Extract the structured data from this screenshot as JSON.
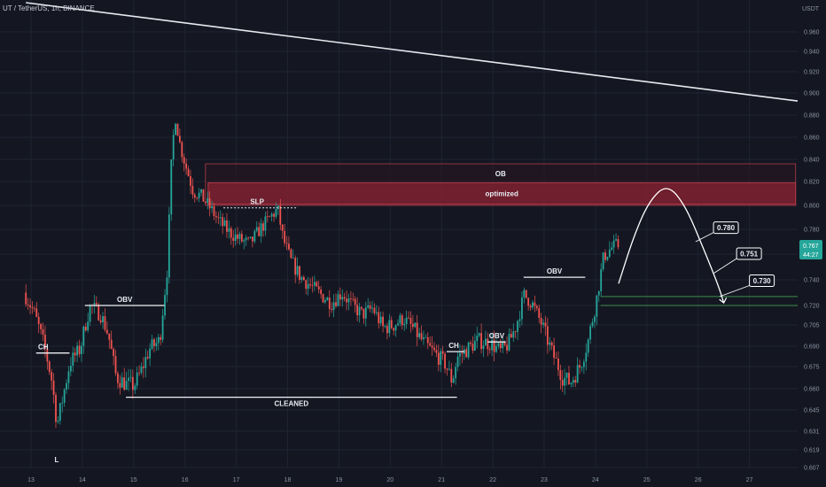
{
  "header": {
    "symbol": "UT / TetherUS, 1h, BINANCE",
    "currency": "USDT"
  },
  "price_badge": {
    "price": "0.767",
    "timer": "44:27",
    "color": "#26a69a"
  },
  "colors": {
    "background": "#141722",
    "up": "#26a69a",
    "down": "#ef5350",
    "zone": "#8b2332",
    "support": "#3f8f4a"
  },
  "chart_data": {
    "type": "candlestick",
    "xlabel": "",
    "ylabel": "",
    "x_ticks": [
      "13",
      "14",
      "15",
      "16",
      "17",
      "18",
      "19",
      "20",
      "21",
      "22",
      "23",
      "24",
      "25",
      "26",
      "27"
    ],
    "x_range": [
      12.9,
      27.9
    ],
    "y_ticks": [
      0.96,
      0.94,
      0.92,
      0.9,
      0.88,
      0.86,
      0.84,
      0.82,
      0.8,
      0.78,
      0.76,
      0.74,
      0.72,
      0.705,
      0.69,
      0.675,
      0.66,
      0.645,
      0.631,
      0.619,
      0.607
    ],
    "y_tick_labels": [
      "0.960",
      "0.940",
      "0.920",
      "0.900",
      "0.880",
      "0.860",
      "0.840",
      "0.820",
      "0.800",
      "0.780",
      "0.760",
      "0.740",
      "0.720",
      "0.705",
      "0.690",
      "0.675",
      "0.660",
      "0.645",
      "0.631",
      "0.619",
      "0.607"
    ],
    "price_path": [
      [
        12.9,
        0.73
      ],
      [
        13.1,
        0.715
      ],
      [
        13.3,
        0.69
      ],
      [
        13.45,
        0.665
      ],
      [
        13.55,
        0.635
      ],
      [
        13.65,
        0.652
      ],
      [
        13.8,
        0.678
      ],
      [
        14.0,
        0.688
      ],
      [
        14.1,
        0.705
      ],
      [
        14.2,
        0.72
      ],
      [
        14.4,
        0.713
      ],
      [
        14.55,
        0.698
      ],
      [
        14.7,
        0.668
      ],
      [
        14.9,
        0.663
      ],
      [
        15.05,
        0.662
      ],
      [
        15.2,
        0.673
      ],
      [
        15.35,
        0.688
      ],
      [
        15.55,
        0.694
      ],
      [
        15.7,
        0.75
      ],
      [
        15.78,
        0.84
      ],
      [
        15.85,
        0.88
      ],
      [
        15.95,
        0.852
      ],
      [
        16.05,
        0.835
      ],
      [
        16.2,
        0.812
      ],
      [
        16.35,
        0.808
      ],
      [
        16.5,
        0.8
      ],
      [
        16.7,
        0.787
      ],
      [
        16.9,
        0.778
      ],
      [
        17.1,
        0.772
      ],
      [
        17.3,
        0.768
      ],
      [
        17.5,
        0.78
      ],
      [
        17.7,
        0.79
      ],
      [
        17.85,
        0.797
      ],
      [
        17.95,
        0.773
      ],
      [
        18.1,
        0.755
      ],
      [
        18.3,
        0.742
      ],
      [
        18.5,
        0.735
      ],
      [
        18.7,
        0.728
      ],
      [
        18.9,
        0.722
      ],
      [
        19.1,
        0.73
      ],
      [
        19.3,
        0.72
      ],
      [
        19.5,
        0.713
      ],
      [
        19.7,
        0.718
      ],
      [
        19.9,
        0.703
      ],
      [
        20.1,
        0.705
      ],
      [
        20.3,
        0.71
      ],
      [
        20.5,
        0.702
      ],
      [
        20.7,
        0.692
      ],
      [
        20.9,
        0.685
      ],
      [
        21.1,
        0.678
      ],
      [
        21.25,
        0.665
      ],
      [
        21.35,
        0.682
      ],
      [
        21.55,
        0.688
      ],
      [
        21.75,
        0.694
      ],
      [
        22.0,
        0.692
      ],
      [
        22.2,
        0.686
      ],
      [
        22.35,
        0.692
      ],
      [
        22.5,
        0.705
      ],
      [
        22.65,
        0.728
      ],
      [
        22.8,
        0.722
      ],
      [
        23.0,
        0.705
      ],
      [
        23.2,
        0.685
      ],
      [
        23.4,
        0.668
      ],
      [
        23.55,
        0.664
      ],
      [
        23.75,
        0.676
      ],
      [
        23.9,
        0.694
      ],
      [
        24.05,
        0.722
      ],
      [
        24.2,
        0.758
      ],
      [
        24.35,
        0.765
      ],
      [
        24.45,
        0.767
      ]
    ],
    "descending_trendline": [
      [
        12.9,
        0.99
      ],
      [
        27.9,
        0.893
      ]
    ],
    "zones": [
      {
        "name": "OB",
        "from": 16.4,
        "to": 27.9,
        "low": 0.8,
        "high": 0.836,
        "style": "outline"
      },
      {
        "name": "optimized",
        "from": 16.45,
        "to": 27.9,
        "low": 0.801,
        "high": 0.819,
        "style": "filled"
      }
    ],
    "support_lines": [
      0.727,
      0.72
    ],
    "support_from": 24.1,
    "levels": [
      {
        "name": "CH",
        "price": 0.685,
        "from": 13.1,
        "to": 13.75
      },
      {
        "name": "OBV",
        "price": 0.72,
        "from": 14.05,
        "to": 15.6
      },
      {
        "name": "CLEANED",
        "price": 0.654,
        "from": 14.85,
        "to": 21.3
      },
      {
        "name": "SLP",
        "price": 0.798,
        "from": 16.75,
        "to": 18.2
      },
      {
        "name": "CH",
        "price": 0.686,
        "from": 21.1,
        "to": 21.45
      },
      {
        "name": "OBV",
        "price": 0.693,
        "from": 21.9,
        "to": 22.25
      },
      {
        "name": "OBV",
        "price": 0.742,
        "from": 22.6,
        "to": 23.8
      }
    ],
    "projection_path": [
      [
        24.45,
        0.737
      ],
      [
        24.75,
        0.775
      ],
      [
        25.05,
        0.804
      ],
      [
        25.4,
        0.818
      ],
      [
        25.75,
        0.8
      ],
      [
        26.1,
        0.765
      ],
      [
        26.4,
        0.735
      ],
      [
        26.5,
        0.722
      ]
    ],
    "targets": [
      {
        "label": "0.780",
        "x": 26.3,
        "y": 0.781
      },
      {
        "label": "0.751",
        "x": 26.75,
        "y": 0.76
      },
      {
        "label": "0.730",
        "x": 27.0,
        "y": 0.739
      }
    ],
    "low_marker": {
      "label": "L",
      "x": 13.5
    },
    "labels": {
      "OB": "OB",
      "optimized": "optimized",
      "SLP": "SLP",
      "CLEANED": "CLEANED",
      "CH": "CH",
      "OBV": "OBV"
    }
  }
}
